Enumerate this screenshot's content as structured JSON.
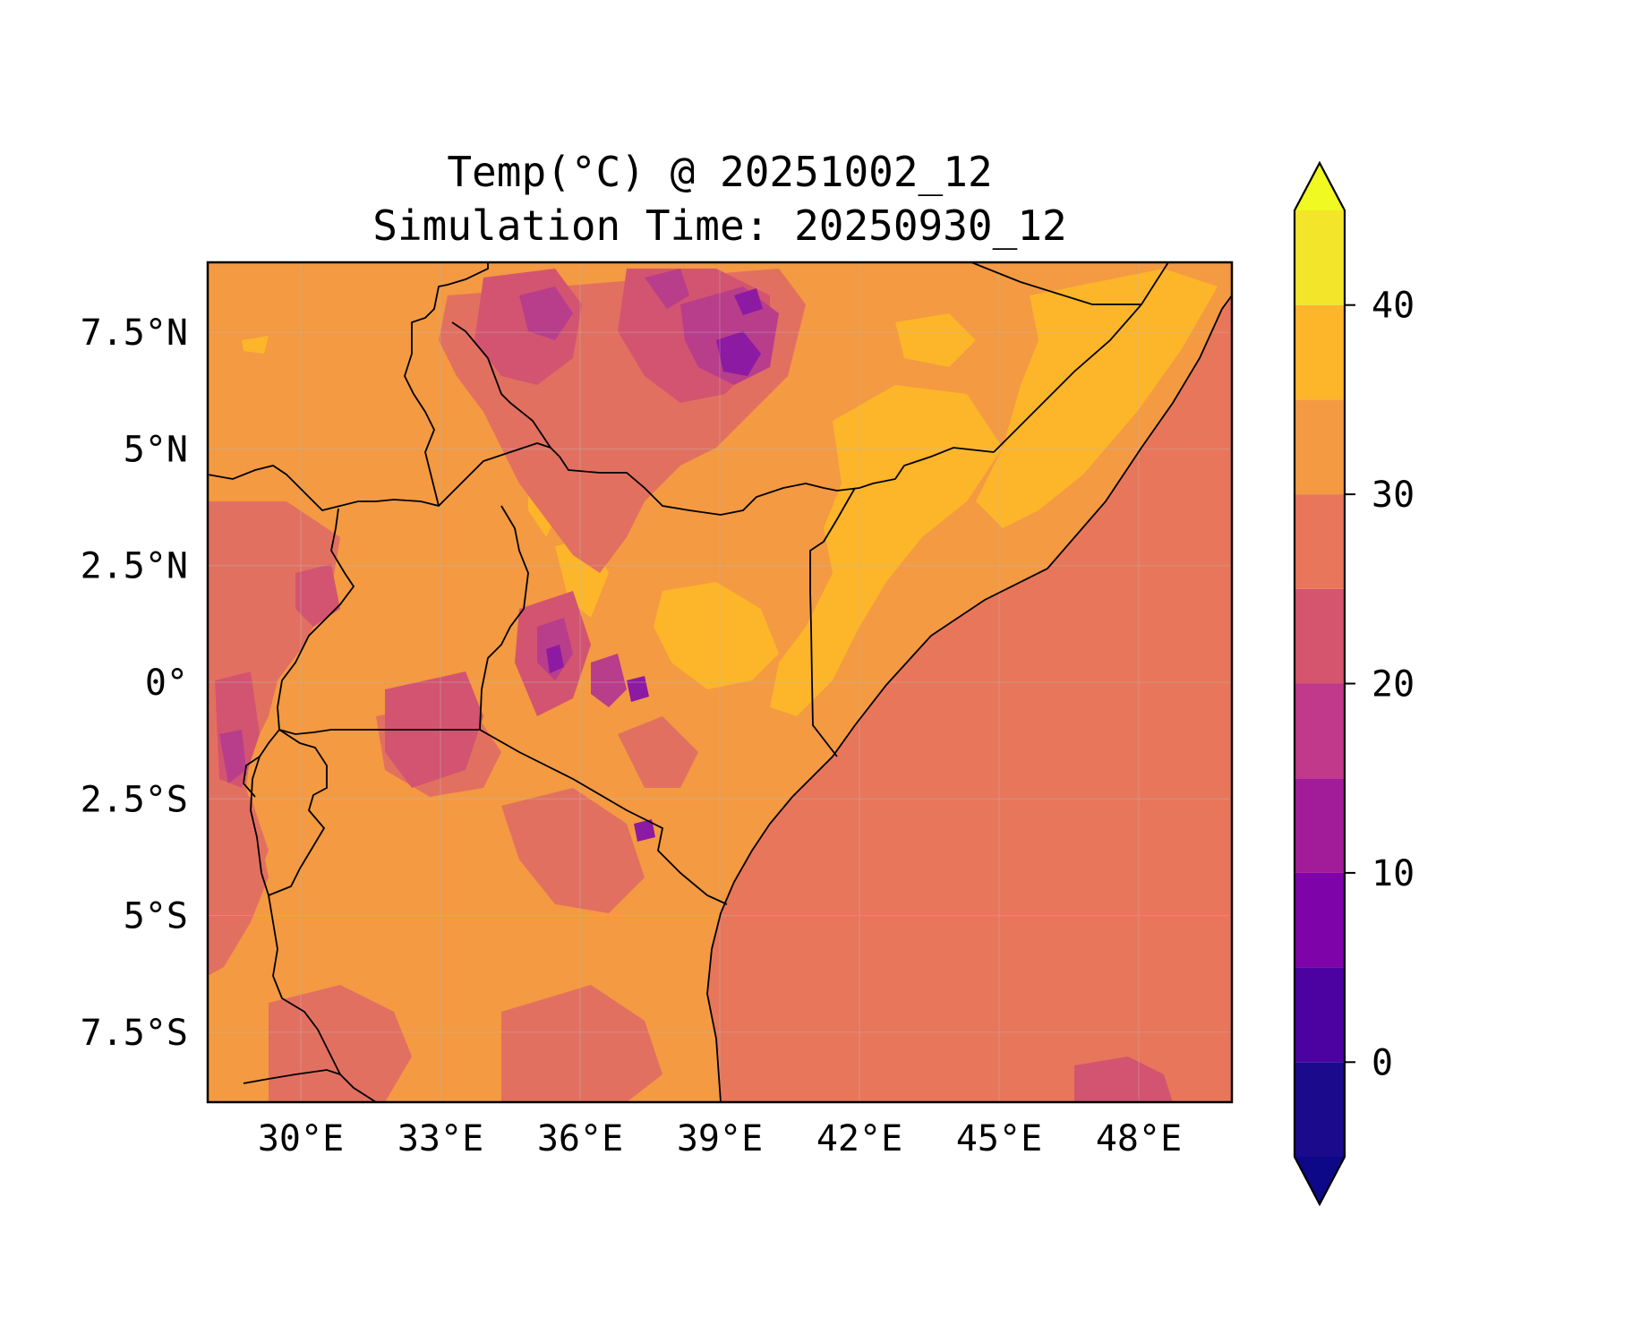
{
  "figure": {
    "title_line1": "Temp(°C) @ 20251002_12",
    "title_line2": "Simulation Time: 20250930_12"
  },
  "map": {
    "extent": {
      "lon_min": 28.0,
      "lon_max": 50.0,
      "lat_min": -9.0,
      "lat_max": 9.0
    },
    "lon_ticks": [
      30,
      33,
      36,
      39,
      42,
      45,
      48
    ],
    "lon_labels": [
      "30°E",
      "33°E",
      "36°E",
      "39°E",
      "42°E",
      "45°E",
      "48°E"
    ],
    "lat_ticks": [
      7.5,
      5,
      2.5,
      0,
      -2.5,
      -5,
      -7.5
    ],
    "lat_labels": [
      "7.5°N",
      "5°N",
      "2.5°N",
      "0°",
      "2.5°S",
      "5°S",
      "7.5°S"
    ],
    "gridlines": true,
    "colors": {
      "ocean": "#e8765a",
      "land_base": "#f39a42",
      "warm": "#fdb52a",
      "cool": "#e27060",
      "cooler": "#d35470",
      "cold": "#b83d8b",
      "highland": "#8c1aa3"
    }
  },
  "chart_data": {
    "type": "heatmap",
    "title": "Temp(°C) @ 20251002_12\nSimulation Time: 20250930_12",
    "variable": "Temp(°C)",
    "colorbar": {
      "levels": [
        -5,
        0,
        5,
        10,
        15,
        20,
        25,
        30,
        35,
        40,
        45
      ],
      "tick_values": [
        0,
        10,
        20,
        30,
        40
      ],
      "tick_labels": [
        "0",
        "10",
        "20",
        "30",
        "40"
      ],
      "colors": [
        "#1b0a8c",
        "#4c02a1",
        "#7e03a8",
        "#a21c9a",
        "#c0398a",
        "#d5546e",
        "#e8765a",
        "#f39a42",
        "#fdb52a",
        "#f3e62a"
      ],
      "extend": "both",
      "under_color": "#0d0887",
      "over_color": "#f0f921"
    }
  }
}
